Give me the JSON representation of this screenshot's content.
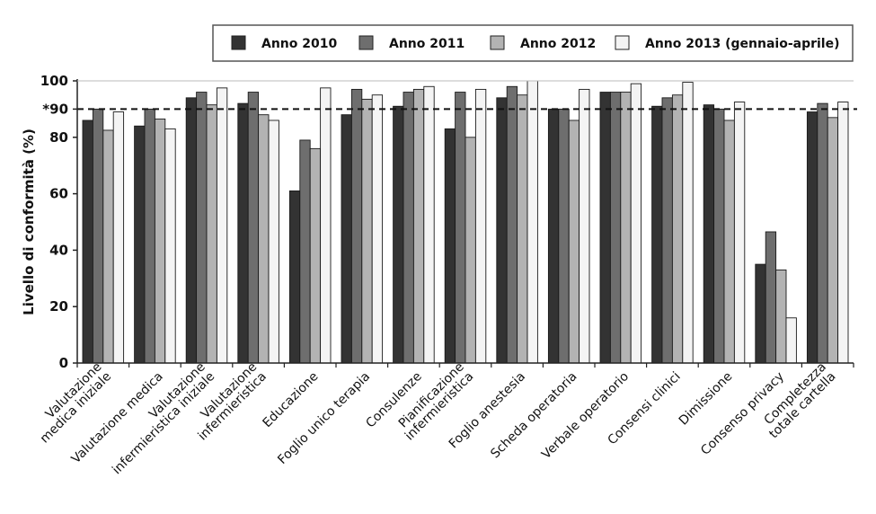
{
  "chart_data": {
    "type": "bar",
    "ylabel": "Livello di conformità (%)",
    "ylim": [
      0,
      100
    ],
    "yticks": [
      {
        "value": 0,
        "label": "0"
      },
      {
        "value": 20,
        "label": "20"
      },
      {
        "value": 40,
        "label": "40"
      },
      {
        "value": 60,
        "label": "60"
      },
      {
        "value": 80,
        "label": "80"
      },
      {
        "value": 90,
        "label": "*90"
      },
      {
        "value": 100,
        "label": "100"
      }
    ],
    "threshold": 90,
    "grid": false,
    "legend_position": "top",
    "categories": [
      "Valutazione\nmedica iniziale",
      "Valutazione medica",
      "Valutazione\ninfermieristica iniziale",
      "Valutazione\ninfermieristica",
      "Educazione",
      "Foglio unico terapia",
      "Consulenze",
      "Pianificazione\ninfermieristica",
      "Foglio anestesia",
      "Scheda operatoria",
      "Verbale operatorio",
      "Consensi clinici",
      "Dimissione",
      "Consenso privacy",
      "Completezza\ntotale cartella"
    ],
    "series": [
      {
        "name": "Anno 2010",
        "color": "#333333",
        "values": [
          86,
          84,
          94,
          92,
          61,
          88,
          91,
          83,
          94,
          90,
          96,
          91,
          91.5,
          35,
          89
        ]
      },
      {
        "name": "Anno  2011",
        "color": "#6e6e6e",
        "values": [
          90,
          90,
          96,
          96,
          79,
          97,
          96,
          96,
          98,
          90,
          96,
          94,
          90,
          46.5,
          92
        ]
      },
      {
        "name": "Anno  2012",
        "color": "#b3b3b3",
        "values": [
          82.5,
          86.5,
          91.5,
          88,
          76,
          93.5,
          97,
          80,
          95,
          86,
          96,
          95,
          86,
          33,
          87
        ]
      },
      {
        "name": "Anno  2013 (gennaio-aprile)",
        "color": "#f4f4f4",
        "values": [
          89,
          83,
          97.5,
          86,
          97.5,
          95,
          98,
          97,
          100,
          97,
          99,
          99.5,
          92.5,
          16,
          92.5
        ]
      }
    ]
  }
}
